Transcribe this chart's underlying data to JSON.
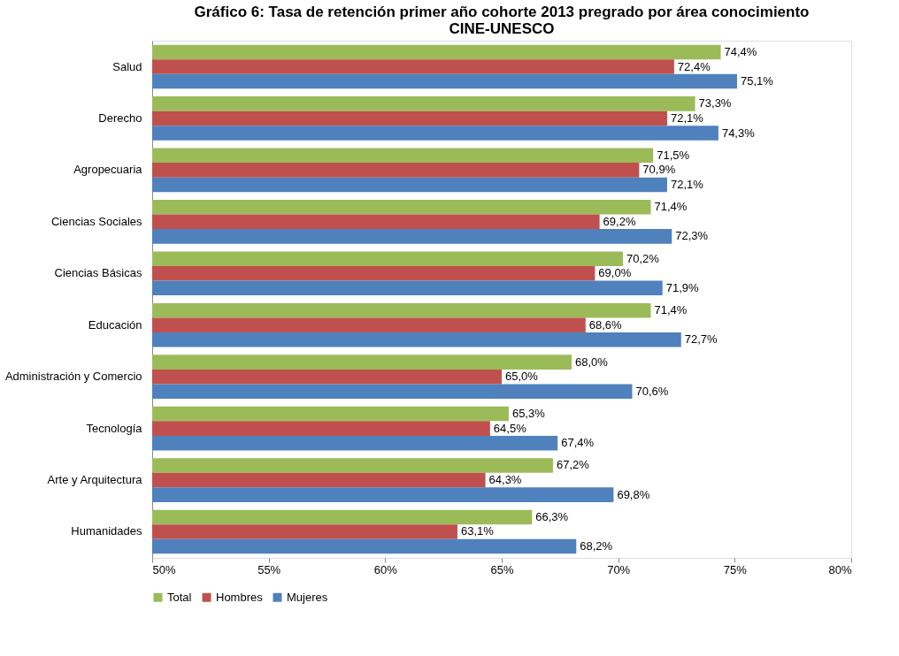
{
  "chart_data": {
    "type": "bar",
    "orientation": "horizontal",
    "title": "Gráfico 6: Tasa de retención primer año cohorte 2013 pregrado por área conocimiento\nCINE-UNESCO",
    "categories": [
      "Salud",
      "Derecho",
      "Agropecuaria",
      "Ciencias Sociales",
      "Ciencias Básicas",
      "Educación",
      "Administración y Comercio",
      "Tecnología",
      "Arte y Arquitectura",
      "Humanidades"
    ],
    "series": [
      {
        "name": "Total",
        "color": "#9bbb59",
        "values": [
          74.4,
          73.3,
          71.5,
          71.4,
          70.2,
          71.4,
          68.0,
          65.3,
          67.2,
          66.3
        ],
        "value_labels": [
          "74,4%",
          "73,3%",
          "71,5%",
          "71,4%",
          "70,2%",
          "71,4%",
          "68,0%",
          "65,3%",
          "67,2%",
          "66,3%"
        ]
      },
      {
        "name": "Hombres",
        "color": "#c0504d",
        "values": [
          72.4,
          72.1,
          70.9,
          69.2,
          69.0,
          68.6,
          65.0,
          64.5,
          64.3,
          63.1
        ],
        "value_labels": [
          "72,4%",
          "72,1%",
          "70,9%",
          "69,2%",
          "69,0%",
          "68,6%",
          "65,0%",
          "64,5%",
          "64,3%",
          "63,1%"
        ]
      },
      {
        "name": "Mujeres",
        "color": "#4f81bd",
        "values": [
          75.1,
          74.3,
          72.1,
          72.3,
          71.9,
          72.7,
          70.6,
          67.4,
          69.8,
          68.2
        ],
        "value_labels": [
          "75,1%",
          "74,3%",
          "72,1%",
          "72,3%",
          "71,9%",
          "72,7%",
          "70,6%",
          "67,4%",
          "69,8%",
          "68,2%"
        ]
      }
    ],
    "xlim": [
      50,
      80
    ],
    "xticks": [
      {
        "value": 50,
        "label": "50%"
      },
      {
        "value": 55,
        "label": "55%"
      },
      {
        "value": 60,
        "label": "60%"
      },
      {
        "value": 65,
        "label": "65%"
      },
      {
        "value": 70,
        "label": "70%"
      },
      {
        "value": 75,
        "label": "75%"
      },
      {
        "value": 80,
        "label": "80%"
      }
    ],
    "grid": false,
    "legend": "bottom"
  }
}
